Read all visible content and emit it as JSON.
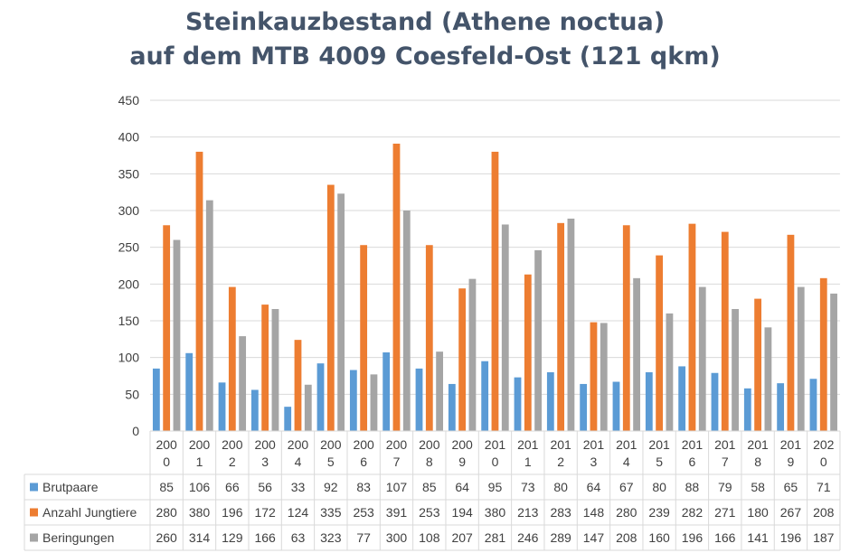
{
  "chart_data": {
    "type": "bar",
    "title": [
      "Steinkauzbestand (Athene noctua)",
      "auf dem MTB 4009 Coesfeld-Ost (121 qkm)"
    ],
    "xlabel": "",
    "ylabel": "",
    "ylim": [
      0,
      450
    ],
    "yticks": [
      "0",
      "50",
      "100",
      "150",
      "200",
      "250",
      "300",
      "350",
      "400",
      "450"
    ],
    "grid": true,
    "legend_position": "table-left",
    "categories": [
      [
        "200",
        "0"
      ],
      [
        "200",
        "1"
      ],
      [
        "200",
        "2"
      ],
      [
        "200",
        "3"
      ],
      [
        "200",
        "4"
      ],
      [
        "200",
        "5"
      ],
      [
        "200",
        "6"
      ],
      [
        "200",
        "7"
      ],
      [
        "200",
        "8"
      ],
      [
        "200",
        "9"
      ],
      [
        "201",
        "0"
      ],
      [
        "201",
        "1"
      ],
      [
        "201",
        "2"
      ],
      [
        "201",
        "3"
      ],
      [
        "201",
        "4"
      ],
      [
        "201",
        "5"
      ],
      [
        "201",
        "6"
      ],
      [
        "201",
        "7"
      ],
      [
        "201",
        "8"
      ],
      [
        "201",
        "9"
      ],
      [
        "202",
        "0"
      ]
    ],
    "series": [
      {
        "name": "Brutpaare",
        "color": "#5b9bd5",
        "values": [
          85,
          106,
          66,
          56,
          33,
          92,
          83,
          107,
          85,
          64,
          95,
          73,
          80,
          64,
          67,
          80,
          88,
          79,
          58,
          65,
          71
        ]
      },
      {
        "name": "Anzahl Jungtiere",
        "color": "#ed7d31",
        "values": [
          280,
          380,
          196,
          172,
          124,
          335,
          253,
          391,
          253,
          194,
          380,
          213,
          283,
          148,
          280,
          239,
          282,
          271,
          180,
          267,
          208
        ]
      },
      {
        "name": "Beringungen",
        "color": "#a5a5a5",
        "values": [
          260,
          314,
          129,
          166,
          63,
          323,
          77,
          300,
          108,
          207,
          281,
          246,
          289,
          147,
          208,
          160,
          196,
          166,
          141,
          196,
          187
        ]
      }
    ]
  }
}
